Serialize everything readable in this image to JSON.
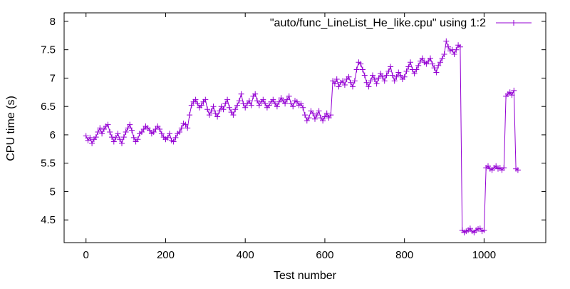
{
  "chart_data": {
    "type": "line",
    "title": "",
    "xlabel": "Test number",
    "ylabel": "CPU time (s)",
    "xlim": [
      -55,
      1155
    ],
    "ylim": [
      4.1,
      8.15
    ],
    "xticks": [
      0,
      200,
      400,
      600,
      800,
      1000
    ],
    "yticks": [
      4.5,
      5,
      5.5,
      6,
      6.5,
      7,
      7.5,
      8
    ],
    "xtick_labels": [
      "0",
      "200",
      "400",
      "600",
      "800",
      "1000"
    ],
    "ytick_labels": [
      "4.5",
      "5",
      "5.5",
      "6",
      "6.5",
      "7",
      "7.5",
      "8"
    ],
    "grid": false,
    "legend_position": "top-right",
    "series": [
      {
        "name": "\"auto/func_LineList_He_like.cpu\" using 1:2",
        "color": "#9400d3",
        "marker": "plus",
        "line": true,
        "x_start": 0,
        "x_step": 5,
        "values": [
          5.98,
          5.9,
          5.95,
          5.85,
          5.92,
          5.96,
          6.05,
          6.12,
          6.02,
          6.1,
          6.15,
          6.18,
          6.05,
          5.96,
          5.88,
          5.95,
          6.02,
          5.92,
          5.85,
          5.96,
          6.05,
          6.12,
          6.18,
          6.08,
          5.95,
          5.88,
          5.92,
          6.02,
          6.05,
          6.1,
          6.15,
          6.12,
          6.08,
          6.02,
          6.05,
          6.1,
          6.15,
          6.1,
          6.02,
          5.96,
          5.92,
          5.95,
          6.02,
          5.9,
          5.88,
          5.95,
          6.02,
          6.05,
          6.12,
          6.2,
          6.18,
          6.12,
          6.35,
          6.52,
          6.58,
          6.62,
          6.55,
          6.48,
          6.52,
          6.58,
          6.62,
          6.45,
          6.35,
          6.42,
          6.5,
          6.38,
          6.32,
          6.42,
          6.5,
          6.45,
          6.55,
          6.62,
          6.48,
          6.4,
          6.35,
          6.45,
          6.52,
          6.6,
          6.72,
          6.55,
          6.48,
          6.55,
          6.6,
          6.52,
          6.68,
          6.72,
          6.6,
          6.52,
          6.58,
          6.62,
          6.55,
          6.48,
          6.52,
          6.58,
          6.62,
          6.55,
          6.5,
          6.58,
          6.65,
          6.6,
          6.55,
          6.62,
          6.68,
          6.55,
          6.5,
          6.6,
          6.58,
          6.52,
          6.55,
          6.48,
          6.35,
          6.25,
          6.3,
          6.42,
          6.38,
          6.28,
          6.35,
          6.42,
          6.3,
          6.25,
          6.32,
          6.38,
          6.3,
          6.35,
          6.95,
          6.9,
          6.98,
          6.85,
          6.92,
          6.95,
          6.88,
          6.98,
          7.02,
          6.92,
          6.85,
          6.95,
          7.15,
          7.28,
          7.25,
          7.15,
          7.05,
          6.92,
          6.85,
          6.95,
          7.05,
          6.98,
          6.9,
          7.0,
          7.08,
          7.02,
          6.95,
          7.05,
          7.12,
          7.2,
          7.05,
          6.95,
          7.02,
          7.1,
          7.05,
          6.98,
          7.02,
          7.12,
          7.2,
          7.28,
          7.15,
          7.08,
          7.15,
          7.22,
          7.3,
          7.35,
          7.28,
          7.25,
          7.3,
          7.35,
          7.25,
          7.18,
          7.1,
          7.22,
          7.28,
          7.35,
          7.42,
          7.65,
          7.55,
          7.48,
          7.5,
          7.42,
          7.5,
          7.58,
          7.55,
          4.32,
          4.28,
          4.3,
          4.32,
          4.35,
          4.3,
          4.28,
          4.32,
          4.34,
          4.35,
          4.3,
          4.32,
          5.42,
          5.45,
          5.4,
          5.38,
          5.42,
          5.45,
          5.4,
          5.42,
          5.38,
          5.42,
          6.68,
          6.72,
          6.75,
          6.7,
          6.78,
          5.4,
          5.38
        ]
      }
    ]
  }
}
